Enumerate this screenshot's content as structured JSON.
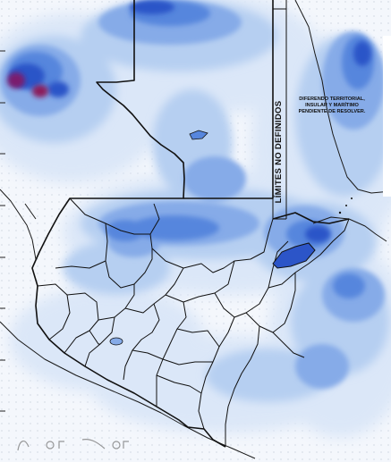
{
  "map": {
    "boundary_label": "LÍMITES NO DEFINIDOS",
    "dispute_note": {
      "line1": "DIFERENDO TERRITORIAL,",
      "line2": "INSULAR Y MARÍTIMO",
      "line3": "PENDIENTE DE RESOLVER."
    },
    "colors": {
      "lightest": "#e2ecfa",
      "light": "#bcd3f2",
      "medium": "#8fb4ea",
      "strong": "#5f8ee0",
      "deep": "#2f5fcf",
      "dark": "#24389e",
      "max": "#8b1a5c",
      "border": "#111111"
    }
  }
}
